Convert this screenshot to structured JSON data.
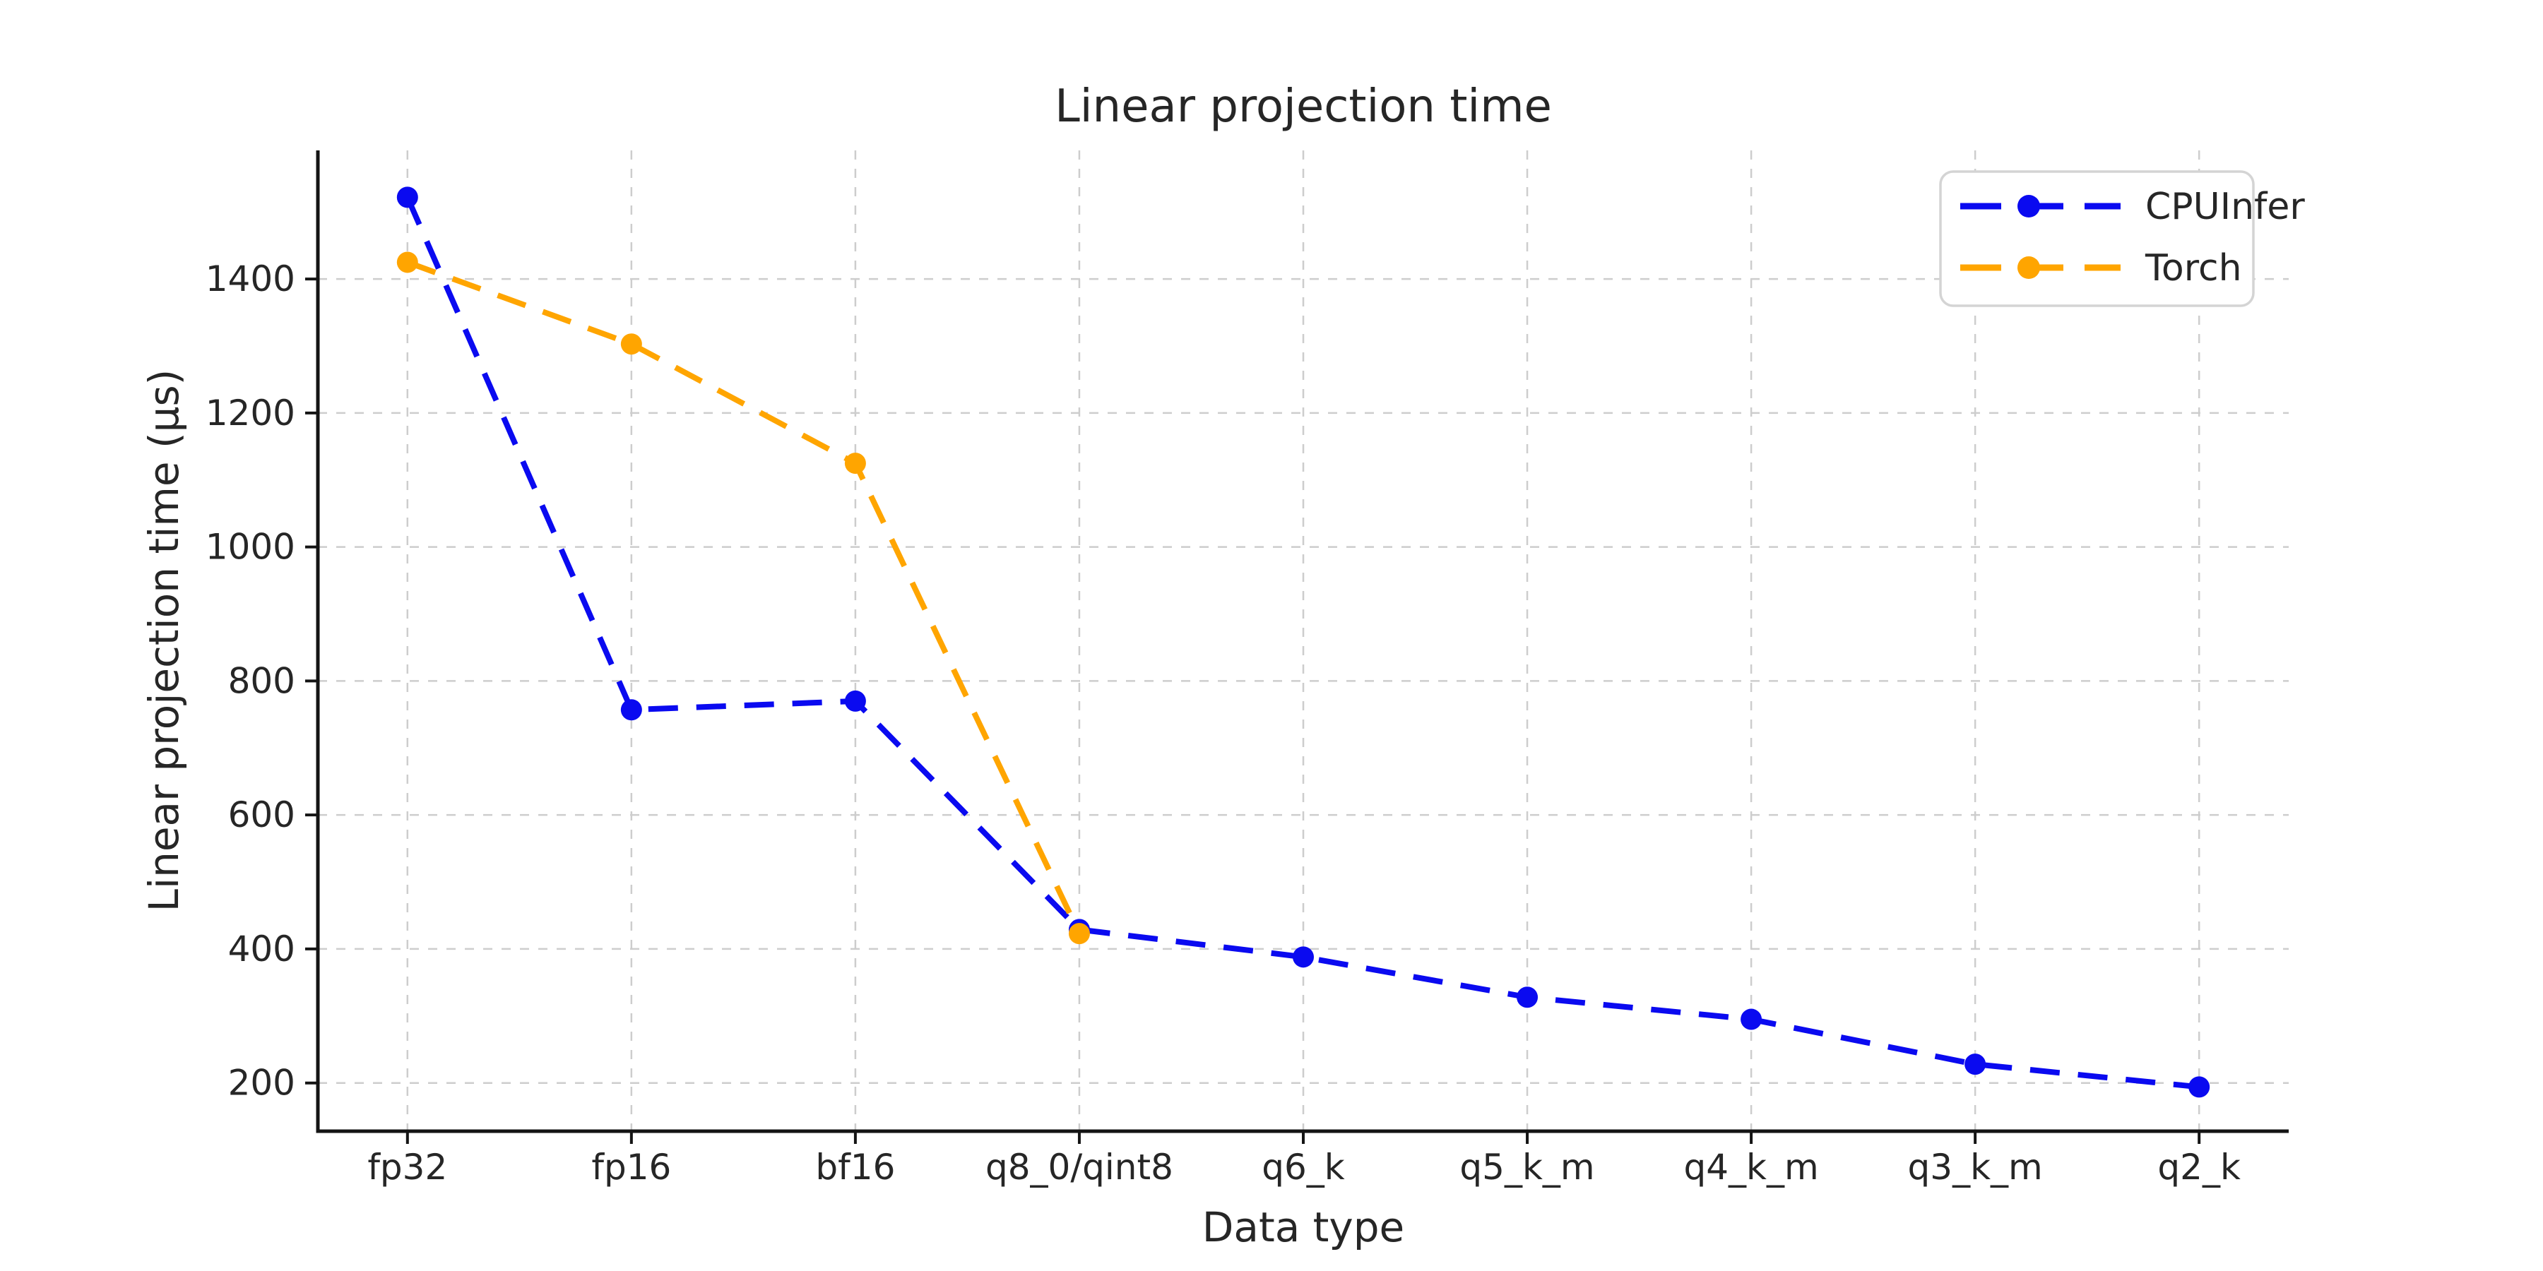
{
  "chart_data": {
    "type": "line",
    "title": "Linear projection time",
    "xlabel": "Data type",
    "ylabel": "Linear projection time (μs)",
    "categories": [
      "fp32",
      "fp16",
      "bf16",
      "q8_0/qint8",
      "q6_k",
      "q5_k_m",
      "q4_k_m",
      "q3_k_m",
      "q2_k"
    ],
    "series": [
      {
        "name": "CPUInfer",
        "color": "#0a0af0",
        "values": [
          1522,
          757,
          770,
          429,
          388,
          328,
          295,
          228,
          194
        ]
      },
      {
        "name": "Torch",
        "color": "#ffa500",
        "values": [
          1425,
          1303,
          1125,
          423,
          null,
          null,
          null,
          null,
          null
        ]
      }
    ],
    "yticks": [
      200,
      400,
      600,
      800,
      1000,
      1200,
      1400
    ],
    "ylim": [
      128,
      1592
    ],
    "grid": true,
    "grid_style": "dashed",
    "line_style": "dashed",
    "marker": "circle",
    "legend_position": "upper right"
  },
  "style": {
    "grid_color": "#cdcdcd",
    "spine_color": "#141414",
    "text_color": "#262626",
    "legend_border_color": "#d4d4d4",
    "background": "#ffffff"
  }
}
